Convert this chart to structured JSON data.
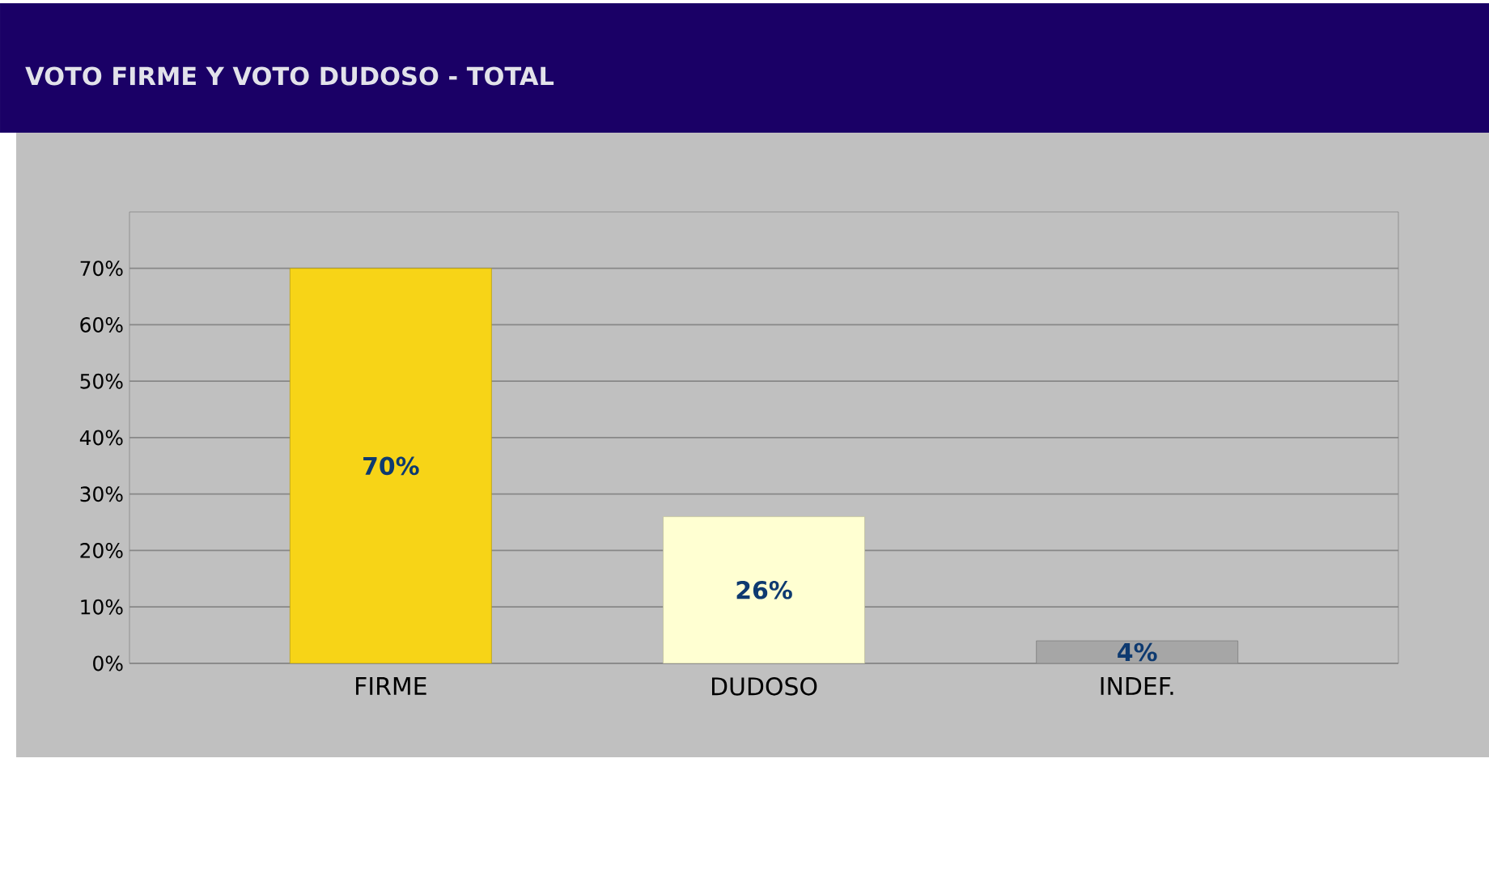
{
  "chart_data": {
    "type": "bar",
    "title": "VOTO FIRME Y VOTO DUDOSO - TOTAL",
    "categories": [
      "FIRME",
      "DUDOSO",
      "INDEF."
    ],
    "values": [
      70,
      26,
      4
    ],
    "colors": [
      "#F7D417",
      "#FFFFD2",
      "#A6A6A6"
    ],
    "value_labels": [
      "70%",
      "26%",
      "4%"
    ],
    "ylim": [
      0,
      80
    ],
    "yticks": [
      {
        "value": 0,
        "label": "0%"
      },
      {
        "value": 10,
        "label": "10%"
      },
      {
        "value": 20,
        "label": "20%"
      },
      {
        "value": 30,
        "label": "30%"
      },
      {
        "value": 40,
        "label": "40%"
      },
      {
        "value": 50,
        "label": "50%"
      },
      {
        "value": 60,
        "label": "60%"
      },
      {
        "value": 70,
        "label": "70%"
      }
    ],
    "grid": "y"
  }
}
